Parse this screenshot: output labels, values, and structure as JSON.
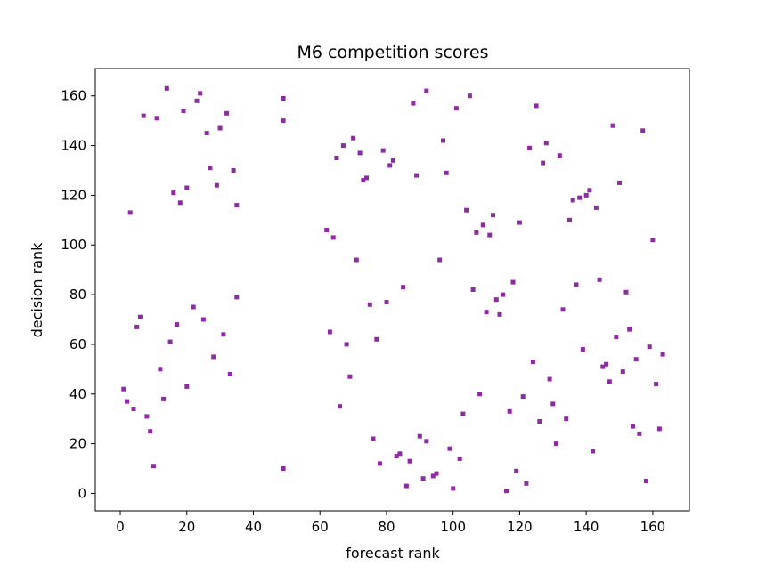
{
  "chart_data": {
    "type": "scatter",
    "title": "M6 competition scores",
    "xlabel": "forecast rank",
    "ylabel": "decision rank",
    "xlim": [
      -7.5,
      171
    ],
    "ylim": [
      -7,
      171
    ],
    "xticks": [
      0,
      20,
      40,
      60,
      80,
      100,
      120,
      140,
      160
    ],
    "yticks": [
      0,
      20,
      40,
      60,
      80,
      100,
      120,
      140,
      160
    ],
    "grid": false,
    "marker_color": "#8e2aa3",
    "points": [
      [
        1,
        42
      ],
      [
        2,
        37
      ],
      [
        3,
        113
      ],
      [
        4,
        34
      ],
      [
        5,
        67
      ],
      [
        6,
        71
      ],
      [
        7,
        152
      ],
      [
        8,
        31
      ],
      [
        9,
        25
      ],
      [
        10,
        11
      ],
      [
        11,
        151
      ],
      [
        12,
        50
      ],
      [
        13,
        38
      ],
      [
        14,
        163
      ],
      [
        15,
        61
      ],
      [
        16,
        121
      ],
      [
        17,
        68
      ],
      [
        18,
        117
      ],
      [
        19,
        154
      ],
      [
        20,
        43
      ],
      [
        20,
        123
      ],
      [
        22,
        75
      ],
      [
        23,
        158
      ],
      [
        24,
        161
      ],
      [
        25,
        70
      ],
      [
        26,
        145
      ],
      [
        27,
        131
      ],
      [
        28,
        55
      ],
      [
        29,
        124
      ],
      [
        30,
        147
      ],
      [
        31,
        64
      ],
      [
        32,
        153
      ],
      [
        33,
        48
      ],
      [
        34,
        130
      ],
      [
        35,
        116
      ],
      [
        35,
        79
      ],
      [
        49,
        159
      ],
      [
        49,
        150
      ],
      [
        49,
        10
      ],
      [
        62,
        106
      ],
      [
        63,
        65
      ],
      [
        64,
        103
      ],
      [
        65,
        135
      ],
      [
        66,
        35
      ],
      [
        67,
        140
      ],
      [
        68,
        60
      ],
      [
        69,
        47
      ],
      [
        70,
        143
      ],
      [
        71,
        94
      ],
      [
        72,
        137
      ],
      [
        73,
        126
      ],
      [
        74,
        127
      ],
      [
        75,
        76
      ],
      [
        76,
        22
      ],
      [
        77,
        62
      ],
      [
        78,
        12
      ],
      [
        79,
        138
      ],
      [
        80,
        77
      ],
      [
        81,
        132
      ],
      [
        82,
        134
      ],
      [
        83,
        15
      ],
      [
        84,
        16
      ],
      [
        85,
        83
      ],
      [
        86,
        3
      ],
      [
        87,
        13
      ],
      [
        88,
        157
      ],
      [
        89,
        128
      ],
      [
        90,
        23
      ],
      [
        91,
        6
      ],
      [
        92,
        162
      ],
      [
        92,
        21
      ],
      [
        94,
        7
      ],
      [
        95,
        8
      ],
      [
        96,
        94
      ],
      [
        97,
        142
      ],
      [
        98,
        129
      ],
      [
        99,
        18
      ],
      [
        100,
        2
      ],
      [
        101,
        155
      ],
      [
        102,
        14
      ],
      [
        103,
        32
      ],
      [
        104,
        114
      ],
      [
        105,
        160
      ],
      [
        106,
        82
      ],
      [
        107,
        105
      ],
      [
        108,
        40
      ],
      [
        109,
        108
      ],
      [
        110,
        73
      ],
      [
        111,
        104
      ],
      [
        112,
        112
      ],
      [
        113,
        78
      ],
      [
        114,
        72
      ],
      [
        115,
        80
      ],
      [
        116,
        1
      ],
      [
        117,
        33
      ],
      [
        118,
        85
      ],
      [
        119,
        9
      ],
      [
        120,
        109
      ],
      [
        121,
        39
      ],
      [
        122,
        4
      ],
      [
        123,
        139
      ],
      [
        124,
        53
      ],
      [
        125,
        156
      ],
      [
        126,
        29
      ],
      [
        127,
        133
      ],
      [
        128,
        141
      ],
      [
        129,
        46
      ],
      [
        130,
        36
      ],
      [
        131,
        20
      ],
      [
        132,
        136
      ],
      [
        133,
        74
      ],
      [
        134,
        30
      ],
      [
        135,
        110
      ],
      [
        136,
        118
      ],
      [
        137,
        84
      ],
      [
        138,
        119
      ],
      [
        139,
        58
      ],
      [
        140,
        120
      ],
      [
        141,
        122
      ],
      [
        142,
        17
      ],
      [
        143,
        115
      ],
      [
        144,
        86
      ],
      [
        145,
        51
      ],
      [
        146,
        52
      ],
      [
        147,
        45
      ],
      [
        148,
        148
      ],
      [
        149,
        63
      ],
      [
        150,
        125
      ],
      [
        151,
        49
      ],
      [
        152,
        81
      ],
      [
        153,
        66
      ],
      [
        154,
        27
      ],
      [
        155,
        54
      ],
      [
        156,
        24
      ],
      [
        157,
        146
      ],
      [
        158,
        5
      ],
      [
        159,
        59
      ],
      [
        160,
        102
      ],
      [
        161,
        44
      ],
      [
        162,
        26
      ],
      [
        163,
        56
      ]
    ]
  }
}
